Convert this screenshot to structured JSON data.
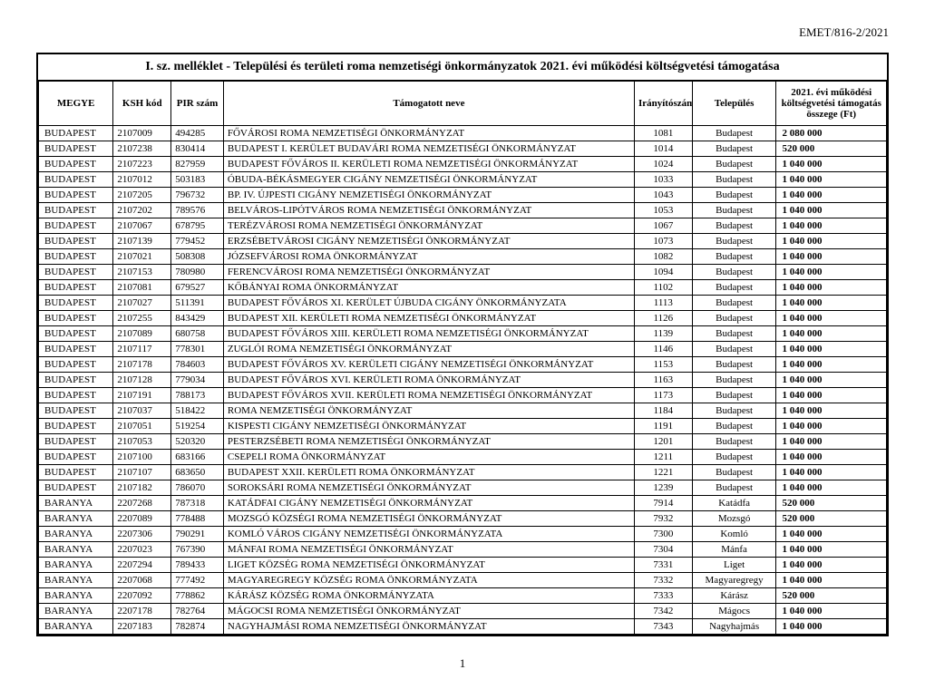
{
  "header_code": "EMET/816-2/2021",
  "title": "I. sz. melléklet - Települési és területi roma nemzetiségi önkormányzatok 2021. évi működési költségvetési támogatása",
  "page_number": "1",
  "columns": {
    "megye": "MEGYE",
    "ksh": "KSH kód",
    "pir": "PIR szám",
    "nev": "Támogatott neve",
    "irsz": "Irányítószám",
    "telepules": "Település",
    "osszeg": "2021. évi működési költségvetési támogatás összege (Ft)"
  },
  "rows": [
    {
      "megye": "BUDAPEST",
      "ksh": "2107009",
      "pir": "494285",
      "nev": "FŐVÁROSI ROMA NEMZETISÉGI ÖNKORMÁNYZAT",
      "irsz": "1081",
      "tel": "Budapest",
      "ossz": "2 080 000"
    },
    {
      "megye": "BUDAPEST",
      "ksh": "2107238",
      "pir": "830414",
      "nev": "BUDAPEST I. KERÜLET BUDAVÁRI ROMA NEMZETISÉGI ÖNKORMÁNYZAT",
      "irsz": "1014",
      "tel": "Budapest",
      "ossz": "520 000"
    },
    {
      "megye": "BUDAPEST",
      "ksh": "2107223",
      "pir": "827959",
      "nev": "BUDAPEST FŐVÁROS II. KERÜLETI ROMA NEMZETISÉGI ÖNKORMÁNYZAT",
      "irsz": "1024",
      "tel": "Budapest",
      "ossz": "1 040 000"
    },
    {
      "megye": "BUDAPEST",
      "ksh": "2107012",
      "pir": "503183",
      "nev": "ÓBUDA-BÉKÁSMEGYER CIGÁNY NEMZETISÉGI ÖNKORMÁNYZAT",
      "irsz": "1033",
      "tel": "Budapest",
      "ossz": "1 040 000"
    },
    {
      "megye": "BUDAPEST",
      "ksh": "2107205",
      "pir": "796732",
      "nev": "BP. IV. ÚJPESTI CIGÁNY NEMZETISÉGI ÖNKORMÁNYZAT",
      "irsz": "1043",
      "tel": "Budapest",
      "ossz": "1 040 000"
    },
    {
      "megye": "BUDAPEST",
      "ksh": "2107202",
      "pir": "789576",
      "nev": "BELVÁROS-LIPÓTVÁROS ROMA NEMZETISÉGI ÖNKORMÁNYZAT",
      "irsz": "1053",
      "tel": "Budapest",
      "ossz": "1 040 000"
    },
    {
      "megye": "BUDAPEST",
      "ksh": "2107067",
      "pir": "678795",
      "nev": "TERÉZVÁROSI ROMA NEMZETISÉGI ÖNKORMÁNYZAT",
      "irsz": "1067",
      "tel": "Budapest",
      "ossz": "1 040 000"
    },
    {
      "megye": "BUDAPEST",
      "ksh": "2107139",
      "pir": "779452",
      "nev": "ERZSÉBETVÁROSI CIGÁNY NEMZETISÉGI ÖNKORMÁNYZAT",
      "irsz": "1073",
      "tel": "Budapest",
      "ossz": "1 040 000"
    },
    {
      "megye": "BUDAPEST",
      "ksh": "2107021",
      "pir": "508308",
      "nev": "JÓZSEFVÁROSI ROMA ÖNKORMÁNYZAT",
      "irsz": "1082",
      "tel": "Budapest",
      "ossz": "1 040 000"
    },
    {
      "megye": "BUDAPEST",
      "ksh": "2107153",
      "pir": "780980",
      "nev": "FERENCVÁROSI ROMA NEMZETISÉGI ÖNKORMÁNYZAT",
      "irsz": "1094",
      "tel": "Budapest",
      "ossz": "1 040 000"
    },
    {
      "megye": "BUDAPEST",
      "ksh": "2107081",
      "pir": "679527",
      "nev": "KŐBÁNYAI ROMA ÖNKORMÁNYZAT",
      "irsz": "1102",
      "tel": "Budapest",
      "ossz": "1 040 000"
    },
    {
      "megye": "BUDAPEST",
      "ksh": "2107027",
      "pir": "511391",
      "nev": "BUDAPEST FŐVÁROS XI. KERÜLET ÚJBUDA CIGÁNY ÖNKORMÁNYZATA",
      "irsz": "1113",
      "tel": "Budapest",
      "ossz": "1 040 000"
    },
    {
      "megye": "BUDAPEST",
      "ksh": "2107255",
      "pir": "843429",
      "nev": "BUDAPEST XII. KERÜLETI ROMA NEMZETISÉGI ÖNKORMÁNYZAT",
      "irsz": "1126",
      "tel": "Budapest",
      "ossz": "1 040 000"
    },
    {
      "megye": "BUDAPEST",
      "ksh": "2107089",
      "pir": "680758",
      "nev": "BUDAPEST FŐVÁROS XIII. KERÜLETI ROMA NEMZETISÉGI ÖNKORMÁNYZAT",
      "irsz": "1139",
      "tel": "Budapest",
      "ossz": "1 040 000"
    },
    {
      "megye": "BUDAPEST",
      "ksh": "2107117",
      "pir": "778301",
      "nev": "ZUGLÓI ROMA NEMZETISÉGI ÖNKORMÁNYZAT",
      "irsz": "1146",
      "tel": "Budapest",
      "ossz": "1 040 000"
    },
    {
      "megye": "BUDAPEST",
      "ksh": "2107178",
      "pir": "784603",
      "nev": "BUDAPEST FŐVÁROS XV. KERÜLETI CIGÁNY NEMZETISÉGI ÖNKORMÁNYZAT",
      "irsz": "1153",
      "tel": "Budapest",
      "ossz": "1 040 000"
    },
    {
      "megye": "BUDAPEST",
      "ksh": "2107128",
      "pir": "779034",
      "nev": "BUDAPEST FŐVÁROS XVI. KERÜLETI ROMA ÖNKORMÁNYZAT",
      "irsz": "1163",
      "tel": "Budapest",
      "ossz": "1 040 000"
    },
    {
      "megye": "BUDAPEST",
      "ksh": "2107191",
      "pir": "788173",
      "nev": "BUDAPEST FŐVÁROS XVII. KERÜLETI ROMA NEMZETISÉGI ÖNKORMÁNYZAT",
      "irsz": "1173",
      "tel": "Budapest",
      "ossz": "1 040 000"
    },
    {
      "megye": "BUDAPEST",
      "ksh": "2107037",
      "pir": "518422",
      "nev": "ROMA NEMZETISÉGI ÖNKORMÁNYZAT",
      "irsz": "1184",
      "tel": "Budapest",
      "ossz": "1 040 000"
    },
    {
      "megye": "BUDAPEST",
      "ksh": "2107051",
      "pir": "519254",
      "nev": "KISPESTI CIGÁNY NEMZETISÉGI ÖNKORMÁNYZAT",
      "irsz": "1191",
      "tel": "Budapest",
      "ossz": "1 040 000"
    },
    {
      "megye": "BUDAPEST",
      "ksh": "2107053",
      "pir": "520320",
      "nev": "PESTERZSÉBETI ROMA NEMZETISÉGI ÖNKORMÁNYZAT",
      "irsz": "1201",
      "tel": "Budapest",
      "ossz": "1 040 000"
    },
    {
      "megye": "BUDAPEST",
      "ksh": "2107100",
      "pir": "683166",
      "nev": "CSEPELI ROMA ÖNKORMÁNYZAT",
      "irsz": "1211",
      "tel": "Budapest",
      "ossz": "1 040 000"
    },
    {
      "megye": "BUDAPEST",
      "ksh": "2107107",
      "pir": "683650",
      "nev": "BUDAPEST XXII. KERÜLETI ROMA ÖNKORMÁNYZAT",
      "irsz": "1221",
      "tel": "Budapest",
      "ossz": "1 040 000"
    },
    {
      "megye": "BUDAPEST",
      "ksh": "2107182",
      "pir": "786070",
      "nev": "SOROKSÁRI ROMA NEMZETISÉGI ÖNKORMÁNYZAT",
      "irsz": "1239",
      "tel": "Budapest",
      "ossz": "1 040 000"
    },
    {
      "megye": "BARANYA",
      "ksh": "2207268",
      "pir": "787318",
      "nev": "KATÁDFAI CIGÁNY NEMZETISÉGI ÖNKORMÁNYZAT",
      "irsz": "7914",
      "tel": "Katádfa",
      "ossz": "520 000"
    },
    {
      "megye": "BARANYA",
      "ksh": "2207089",
      "pir": "778488",
      "nev": "MOZSGÓ KÖZSÉGI ROMA NEMZETISÉGI ÖNKORMÁNYZAT",
      "irsz": "7932",
      "tel": "Mozsgó",
      "ossz": "520 000"
    },
    {
      "megye": "BARANYA",
      "ksh": "2207306",
      "pir": "790291",
      "nev": "KOMLÓ VÁROS CIGÁNY NEMZETISÉGI ÖNKORMÁNYZATA",
      "irsz": "7300",
      "tel": "Komló",
      "ossz": "1 040 000"
    },
    {
      "megye": "BARANYA",
      "ksh": "2207023",
      "pir": "767390",
      "nev": "MÁNFAI ROMA NEMZETISÉGI ÖNKORMÁNYZAT",
      "irsz": "7304",
      "tel": "Mánfa",
      "ossz": "1 040 000"
    },
    {
      "megye": "BARANYA",
      "ksh": "2207294",
      "pir": "789433",
      "nev": "LIGET KÖZSÉG ROMA NEMZETISÉGI ÖNKORMÁNYZAT",
      "irsz": "7331",
      "tel": "Liget",
      "ossz": "1 040 000"
    },
    {
      "megye": "BARANYA",
      "ksh": "2207068",
      "pir": "777492",
      "nev": "MAGYAREGREGY KÖZSÉG ROMA ÖNKORMÁNYZATA",
      "irsz": "7332",
      "tel": "Magyaregregy",
      "ossz": "1 040 000"
    },
    {
      "megye": "BARANYA",
      "ksh": "2207092",
      "pir": "778862",
      "nev": "KÁRÁSZ KÖZSÉG ROMA ÖNKORMÁNYZATA",
      "irsz": "7333",
      "tel": "Kárász",
      "ossz": "520 000"
    },
    {
      "megye": "BARANYA",
      "ksh": "2207178",
      "pir": "782764",
      "nev": "MÁGOCSI ROMA NEMZETISÉGI ÖNKORMÁNYZAT",
      "irsz": "7342",
      "tel": "Mágocs",
      "ossz": "1 040 000"
    },
    {
      "megye": "BARANYA",
      "ksh": "2207183",
      "pir": "782874",
      "nev": "NAGYHAJMÁSI ROMA NEMZETISÉGI ÖNKORMÁNYZAT",
      "irsz": "7343",
      "tel": "Nagyhajmás",
      "ossz": "1 040 000"
    }
  ]
}
